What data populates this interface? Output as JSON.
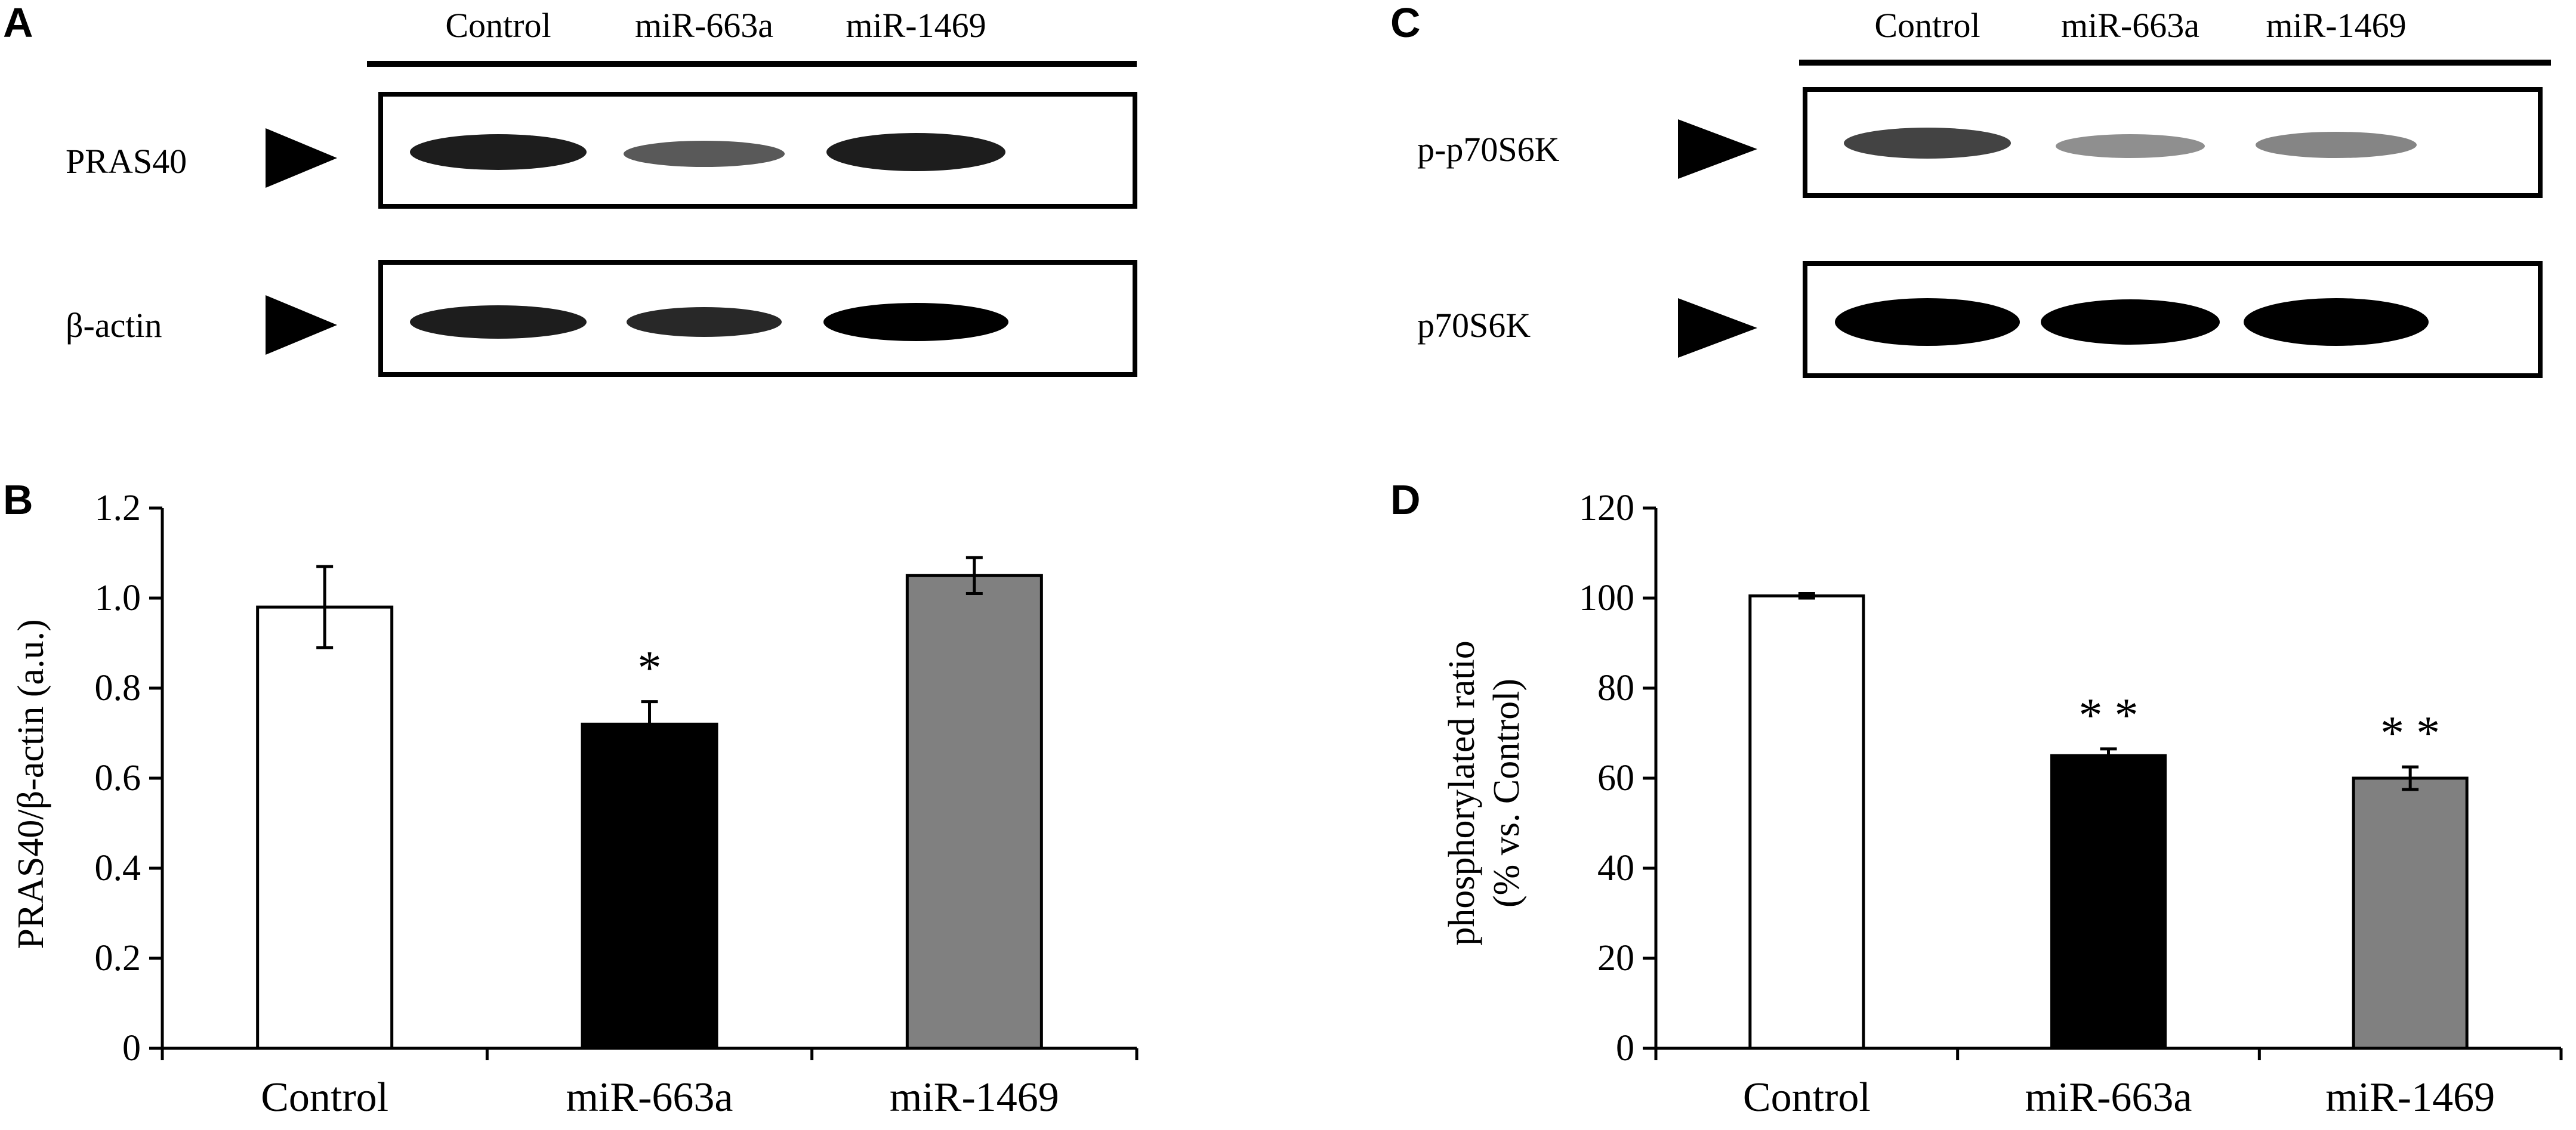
{
  "panels": {
    "A": "A",
    "B": "B",
    "C": "C",
    "D": "D"
  },
  "blot_A": {
    "lanes": [
      "Control",
      "miR-663a",
      "miR-1469"
    ],
    "rows": [
      {
        "label": "PRAS40",
        "intensities": [
          0.95,
          0.7,
          0.95
        ]
      },
      {
        "label": "β-actin",
        "intensities": [
          0.95,
          0.9,
          1.0
        ]
      }
    ]
  },
  "blot_C": {
    "lanes": [
      "Control",
      "miR-663a",
      "miR-1469"
    ],
    "rows": [
      {
        "label": "p-p70S6K",
        "intensities": [
          0.85,
          0.6,
          0.6
        ]
      },
      {
        "label": "p70S6K",
        "intensities": [
          1.0,
          1.0,
          1.0
        ]
      }
    ]
  },
  "chart_data": [
    {
      "type": "bar",
      "panel": "B",
      "categories": [
        "Control",
        "miR-663a",
        "miR-1469"
      ],
      "values": [
        0.98,
        0.72,
        1.05
      ],
      "errors": [
        0.09,
        0.05,
        0.04
      ],
      "significance": [
        "",
        "*",
        ""
      ],
      "colors": [
        "#ffffff",
        "#000000",
        "#808080"
      ],
      "ylabel": "PRAS40/β-actin (a.u.)",
      "ylim": [
        0,
        1.2
      ],
      "yticks": [
        "0",
        "0.2",
        "0.4",
        "0.6",
        "0.8",
        "1.0",
        "1.2"
      ],
      "ytick_values": [
        0,
        0.2,
        0.4,
        0.6,
        0.8,
        1.0,
        1.2
      ]
    },
    {
      "type": "bar",
      "panel": "D",
      "categories": [
        "Control",
        "miR-663a",
        "miR-1469"
      ],
      "values": [
        100.5,
        65,
        60
      ],
      "errors": [
        0.5,
        1.5,
        2.5
      ],
      "significance": [
        "",
        "* *",
        "* *"
      ],
      "colors": [
        "#ffffff",
        "#000000",
        "#808080"
      ],
      "ylabel_line1": "phosphorylated ratio",
      "ylabel_line2": "(% vs. Control)",
      "ylim": [
        0,
        120
      ],
      "yticks": [
        "0",
        "20",
        "40",
        "60",
        "80",
        "100",
        "120"
      ],
      "ytick_values": [
        0,
        20,
        40,
        60,
        80,
        100,
        120
      ]
    }
  ]
}
